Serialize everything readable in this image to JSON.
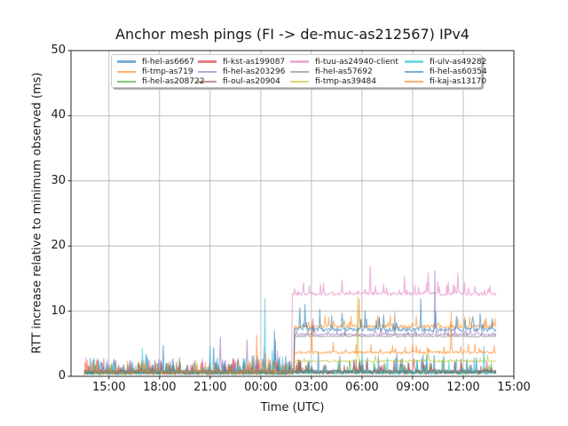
{
  "chart_data": {
    "type": "line",
    "title": "Anchor mesh pings (FI -> de-muc-as212567) IPv4",
    "xlabel": "Time (UTC)",
    "ylabel": "RTT increase relative to minimum observed (ms)",
    "ylim": [
      0,
      50
    ],
    "yticks": [
      0,
      10,
      20,
      30,
      40,
      50
    ],
    "x_hours_range": [
      12.75,
      39.0
    ],
    "xticks": [
      {
        "h": 15,
        "label": "15:00"
      },
      {
        "h": 18,
        "label": "18:00"
      },
      {
        "h": 21,
        "label": "21:00"
      },
      {
        "h": 24,
        "label": "00:00"
      },
      {
        "h": 27,
        "label": "03:00"
      },
      {
        "h": 30,
        "label": "06:00"
      },
      {
        "h": 33,
        "label": "09:00"
      },
      {
        "h": 36,
        "label": "12:00"
      },
      {
        "h": 39,
        "label": "15:00"
      }
    ],
    "data_start_h": 13.55,
    "data_end_h": 37.95,
    "grid": true,
    "grid_color": "#b0b0b0",
    "axes_color": "#262626",
    "line_alpha": 0.55,
    "legend": {
      "ncol": 4,
      "location": "upper center",
      "order": "column-major"
    },
    "series": [
      {
        "name": "fi-hel-as6667",
        "color": "#1f77b4",
        "baseline_before": 0.55,
        "baseline_after": 0.6,
        "step_h": 26.0,
        "noise_before": 0.7,
        "noise_after": 0.7,
        "spikes": [
          [
            15.3,
            2.6
          ],
          [
            17.2,
            3.4
          ],
          [
            19.2,
            2.8
          ],
          [
            21.2,
            4.4
          ],
          [
            23.8,
            3.0
          ],
          [
            24.8,
            6.9
          ],
          [
            27.4,
            3.5
          ],
          [
            30.3,
            2.8
          ],
          [
            33.6,
            3.2
          ],
          [
            36.2,
            2.6
          ]
        ]
      },
      {
        "name": "fi-tmp-as719",
        "color": "#ff7f0e",
        "baseline_before": 0.6,
        "baseline_after": 7.6,
        "step_h": 26.0,
        "noise_before": 0.6,
        "noise_after": 0.5,
        "spikes": [
          [
            23.75,
            6.3
          ],
          [
            24.3,
            3.5
          ],
          [
            27.8,
            9.3
          ],
          [
            29.85,
            11.9
          ],
          [
            31.0,
            9.0
          ],
          [
            33.2,
            9.2
          ],
          [
            36.4,
            9.1
          ]
        ]
      },
      {
        "name": "fi-hel-as208722",
        "color": "#2ca02c",
        "baseline_before": 0.45,
        "baseline_after": 0.5,
        "step_h": 26.0,
        "noise_before": 0.5,
        "noise_after": 0.5,
        "spikes": [
          [
            18.4,
            2.0
          ],
          [
            22.6,
            2.4
          ],
          [
            28.6,
            2.2
          ],
          [
            34.0,
            2.0
          ]
        ]
      },
      {
        "name": "fi-kst-as199087",
        "color": "#d62728",
        "baseline_before": 0.5,
        "baseline_after": 0.6,
        "step_h": 26.0,
        "noise_before": 0.55,
        "noise_after": 0.55,
        "spikes": [
          [
            14.6,
            2.0
          ],
          [
            16.8,
            1.9
          ],
          [
            20.5,
            2.2
          ],
          [
            25.0,
            2.1
          ],
          [
            29.5,
            2.3
          ],
          [
            32.8,
            2.0
          ],
          [
            35.5,
            2.2
          ]
        ]
      },
      {
        "name": "fi-hel-as203296",
        "color": "#9467bd",
        "baseline_before": 0.6,
        "baseline_after": 6.4,
        "step_h": 26.0,
        "noise_before": 0.55,
        "noise_after": 0.3,
        "spikes": [
          [
            21.6,
            6.0
          ],
          [
            23.2,
            5.6
          ],
          [
            27.1,
            8.8
          ],
          [
            34.3,
            16.2
          ],
          [
            36.8,
            7.5
          ]
        ]
      },
      {
        "name": "fi-oul-as20904",
        "color": "#8c564b",
        "baseline_before": 0.6,
        "baseline_after": 0.7,
        "step_h": 26.0,
        "noise_before": 0.55,
        "noise_after": 0.55,
        "spikes": [
          [
            20.1,
            2.4
          ],
          [
            23.5,
            3.1
          ],
          [
            26.8,
            2.2
          ],
          [
            31.9,
            2.5
          ]
        ]
      },
      {
        "name": "fi-tuu-as24940-client",
        "color": "#e377c2",
        "baseline_before": 0.7,
        "baseline_after": 12.6,
        "step_h": 25.85,
        "noise_before": 0.55,
        "noise_after": 0.5,
        "spikes": [
          [
            24.2,
            4.4
          ],
          [
            25.0,
            4.0
          ],
          [
            26.9,
            13.9
          ],
          [
            27.7,
            14.3
          ],
          [
            28.8,
            14.8
          ],
          [
            30.5,
            16.9
          ],
          [
            31.3,
            14.2
          ],
          [
            32.5,
            15.3
          ],
          [
            33.9,
            15.9
          ],
          [
            34.5,
            14.5
          ],
          [
            35.7,
            15.8
          ],
          [
            36.7,
            13.8
          ],
          [
            37.5,
            13.4
          ]
        ]
      },
      {
        "name": "fi-hel-as57692",
        "color": "#7f7f7f",
        "baseline_before": 0.5,
        "baseline_after": 6.1,
        "step_h": 26.0,
        "noise_before": 0.45,
        "noise_after": 0.2,
        "spikes": [
          [
            19.0,
            2.2
          ],
          [
            31.95,
            9.8
          ]
        ]
      },
      {
        "name": "fi-tmp-as39484",
        "color": "#bcbd22",
        "baseline_before": 0.5,
        "baseline_after": 2.3,
        "step_h": 26.0,
        "noise_before": 0.45,
        "noise_after": 0.3,
        "spikes": [
          [
            17.8,
            2.0
          ],
          [
            29.75,
            12.3
          ],
          [
            33.9,
            4.2
          ]
        ]
      },
      {
        "name": "fi-ulv-as49282",
        "color": "#17becf",
        "baseline_before": 0.55,
        "baseline_after": 0.6,
        "step_h": 26.0,
        "noise_before": 0.7,
        "noise_after": 0.6,
        "spikes": [
          [
            14.5,
            2.2
          ],
          [
            17.0,
            4.3
          ],
          [
            21.0,
            4.6
          ],
          [
            24.25,
            11.9
          ],
          [
            24.7,
            4.0
          ],
          [
            25.3,
            2.9
          ],
          [
            30.0,
            3.4
          ],
          [
            35.6,
            2.6
          ],
          [
            37.2,
            4.6
          ]
        ]
      },
      {
        "name": "fi-hel-as60354",
        "color": "#1f77b4",
        "baseline_before": 0.6,
        "baseline_after": 7.1,
        "step_h": 26.0,
        "noise_before": 0.6,
        "noise_after": 0.6,
        "spikes": [
          [
            18.2,
            4.7
          ],
          [
            24.85,
            5.5
          ],
          [
            26.3,
            10.5
          ],
          [
            26.6,
            11.0
          ],
          [
            27.5,
            10.3
          ],
          [
            28.8,
            9.7
          ],
          [
            30.2,
            10.1
          ],
          [
            31.3,
            9.4
          ],
          [
            33.5,
            11.9
          ],
          [
            34.35,
            9.9
          ],
          [
            35.6,
            9.2
          ],
          [
            37.0,
            9.6
          ]
        ]
      },
      {
        "name": "fi-kaj-as13170",
        "color": "#ff7f0e",
        "baseline_before": 0.6,
        "baseline_after": 3.6,
        "step_h": 26.0,
        "noise_before": 0.55,
        "noise_after": 0.4,
        "spikes": [
          [
            16.1,
            2.3
          ],
          [
            27.0,
            8.4
          ],
          [
            28.3,
            5.2
          ],
          [
            33.0,
            4.8
          ],
          [
            35.3,
            9.8
          ],
          [
            36.3,
            4.9
          ]
        ]
      }
    ]
  }
}
